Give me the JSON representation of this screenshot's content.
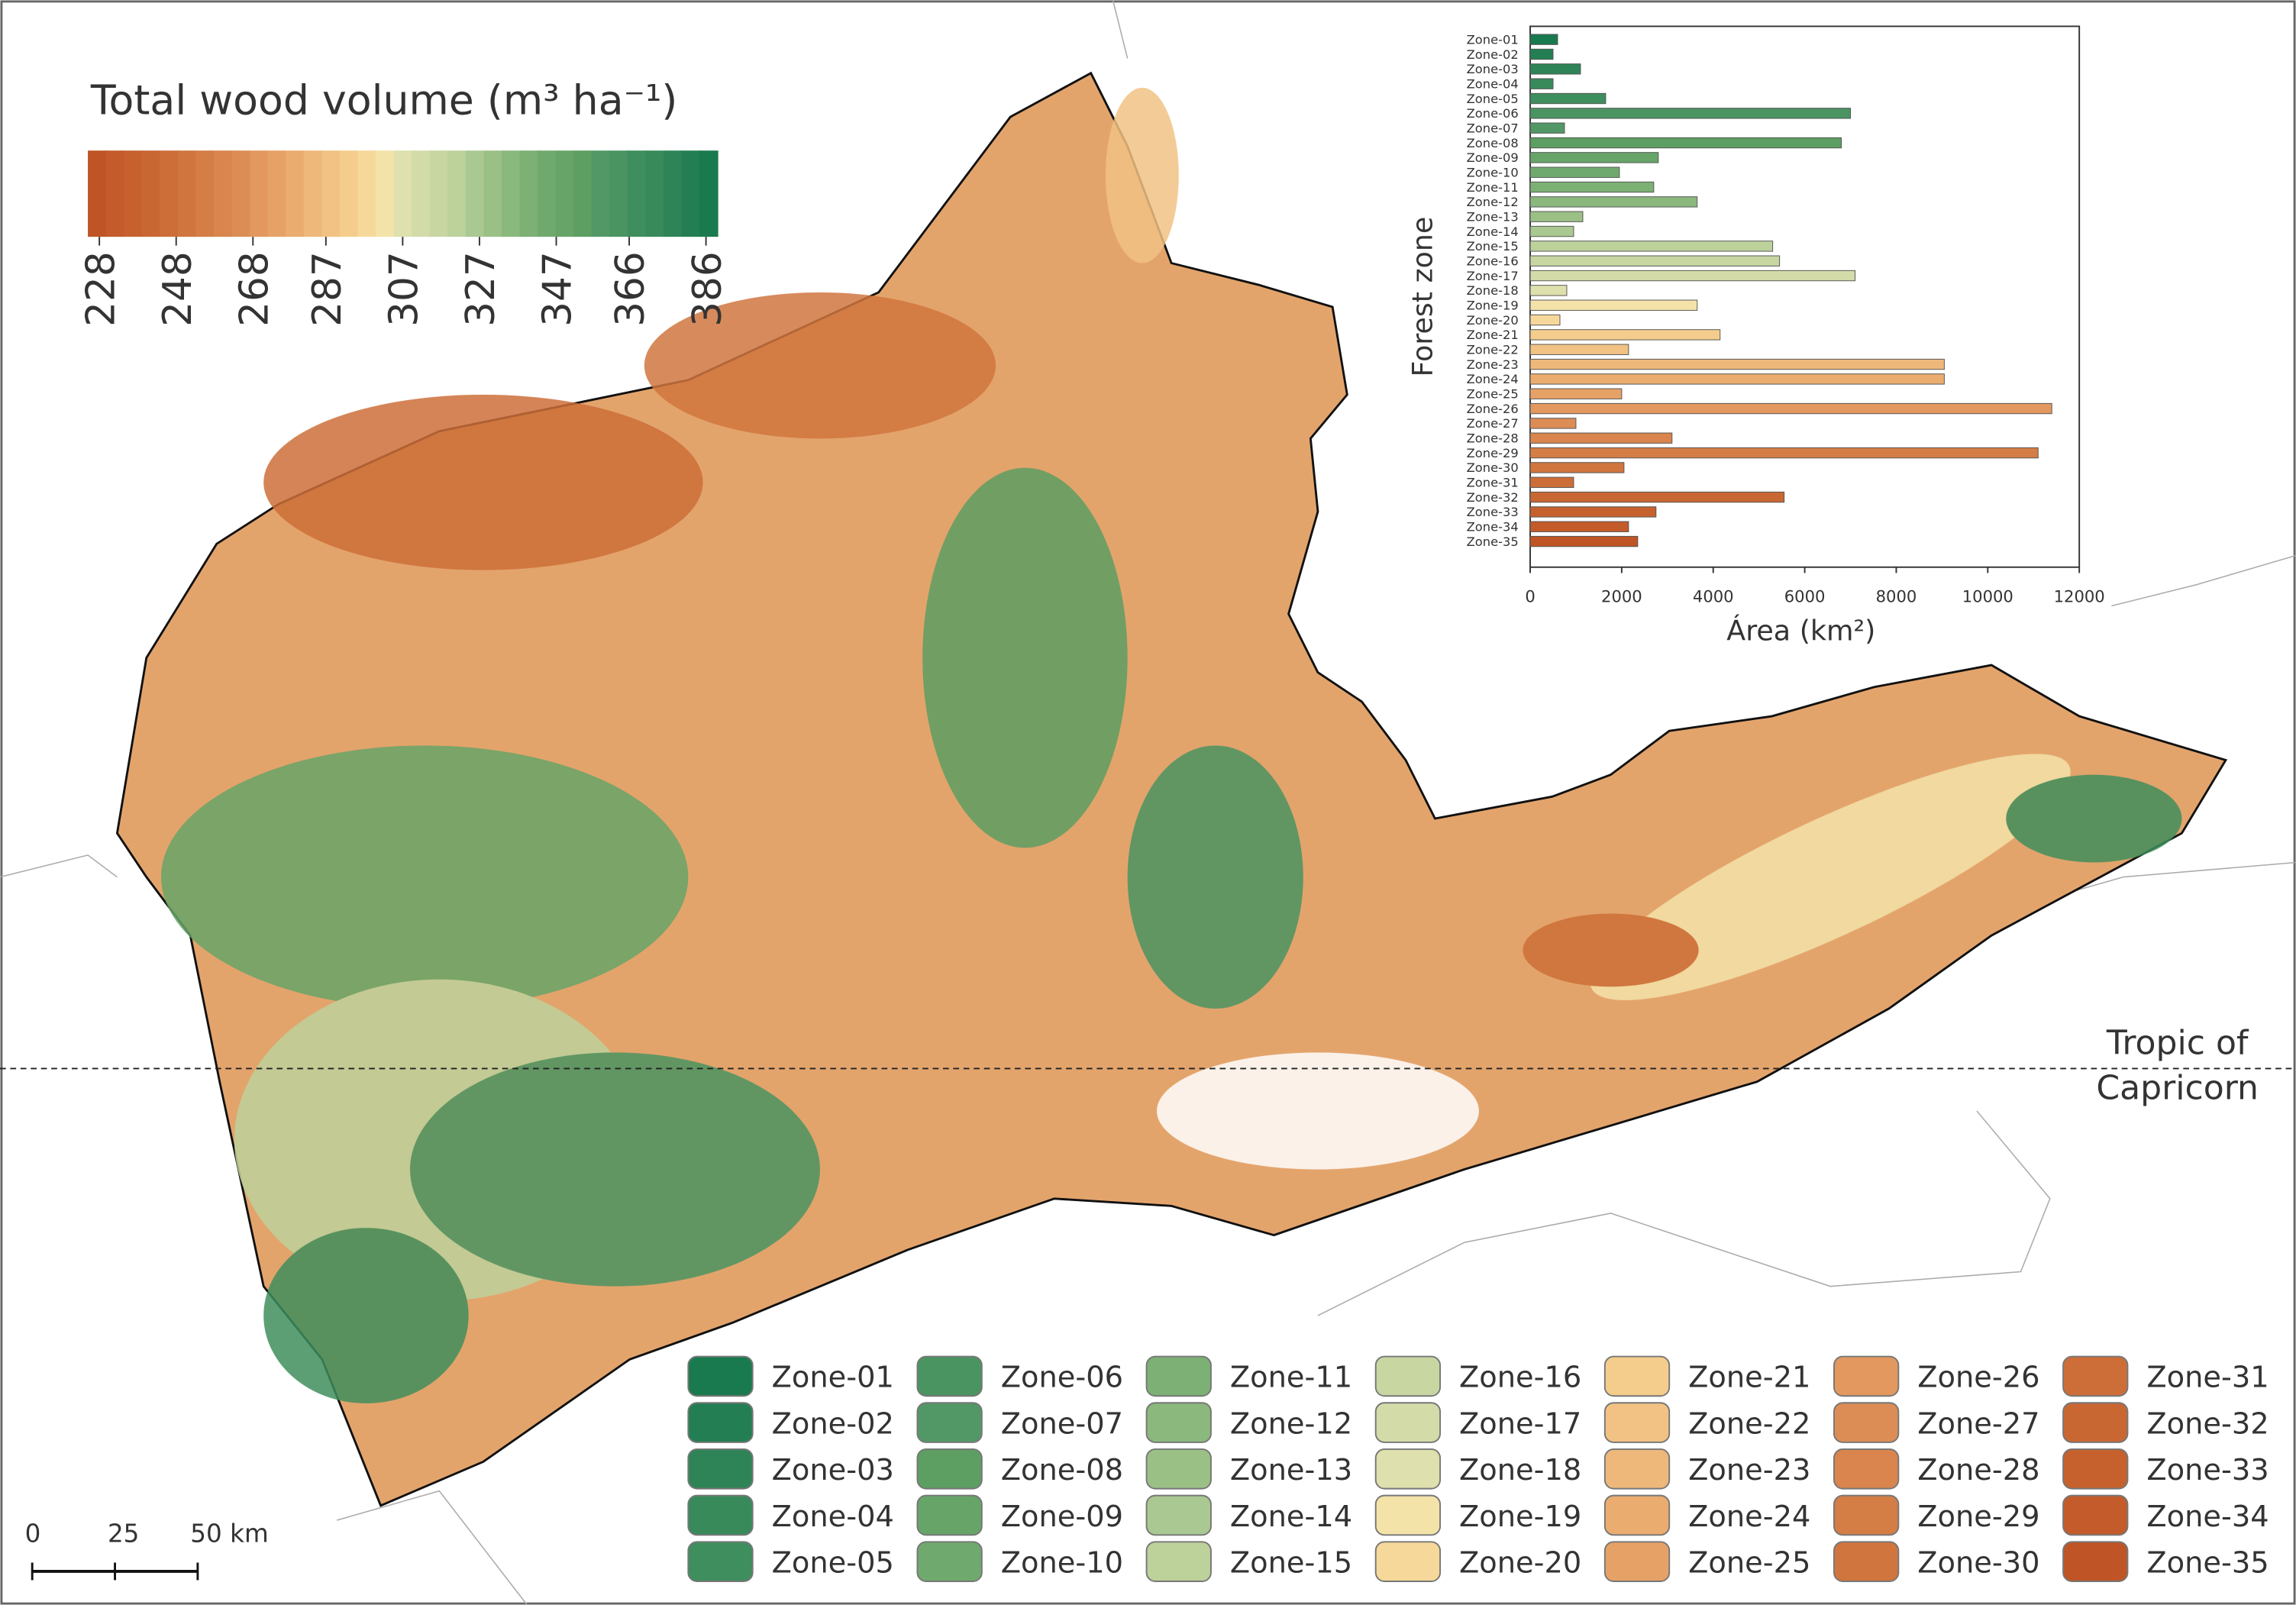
{
  "map": {
    "title": "Total wood volume (m³ ha⁻¹)",
    "colorbar": {
      "lim": [
        225,
        389
      ],
      "ticks": [
        228,
        248,
        268,
        287,
        307,
        327,
        347,
        366,
        386
      ]
    },
    "tropic_label": [
      "Tropic of",
      "Capricorn"
    ],
    "scale_bar": {
      "ticks": [
        {
          "value": 0,
          "label": "0"
        },
        {
          "value": 25,
          "label": "25"
        },
        {
          "value": 50,
          "label": "50 km"
        }
      ]
    }
  },
  "chart_data": {
    "type": "bar",
    "orientation": "horizontal",
    "categories": [
      "Zone-01",
      "Zone-02",
      "Zone-03",
      "Zone-04",
      "Zone-05",
      "Zone-06",
      "Zone-07",
      "Zone-08",
      "Zone-09",
      "Zone-10",
      "Zone-11",
      "Zone-12",
      "Zone-13",
      "Zone-14",
      "Zone-15",
      "Zone-16",
      "Zone-17",
      "Zone-18",
      "Zone-19",
      "Zone-20",
      "Zone-21",
      "Zone-22",
      "Zone-23",
      "Zone-24",
      "Zone-25",
      "Zone-26",
      "Zone-27",
      "Zone-28",
      "Zone-29",
      "Zone-30",
      "Zone-31",
      "Zone-32",
      "Zone-33",
      "Zone-34",
      "Zone-35"
    ],
    "values": [
      600,
      500,
      1100,
      500,
      1650,
      7000,
      750,
      6800,
      2800,
      1950,
      2700,
      3650,
      1150,
      950,
      5300,
      5450,
      7100,
      800,
      3650,
      650,
      4150,
      2150,
      9050,
      9050,
      2000,
      11400,
      1000,
      3100,
      11100,
      2050,
      950,
      5550,
      2750,
      2150,
      2350
    ],
    "colors": [
      "#1a7a4f",
      "#237f53",
      "#2e8457",
      "#388a5b",
      "#3f8e5d",
      "#4a9462",
      "#529866",
      "#5d9e62",
      "#67a468",
      "#70a96d",
      "#7cb074",
      "#8bb87d",
      "#9bc086",
      "#aac891",
      "#bdd19b",
      "#c8d6a2",
      "#d3dca9",
      "#dee0ad",
      "#f4e3a9",
      "#f6d99a",
      "#f4cd8c",
      "#f1c283",
      "#eeb87b",
      "#eaac6f",
      "#e6a266",
      "#e2985e",
      "#dc8d55",
      "#d9854d",
      "#d47d45",
      "#d0753e",
      "#cd6e38",
      "#c96733",
      "#c6612e",
      "#c35b2a",
      "#bf5526"
    ],
    "xlim": [
      0,
      12000
    ],
    "xticks": [
      0,
      2000,
      4000,
      6000,
      8000,
      10000,
      12000
    ],
    "xlabel": "Área (km²)",
    "ylabel": "Forest zone"
  }
}
